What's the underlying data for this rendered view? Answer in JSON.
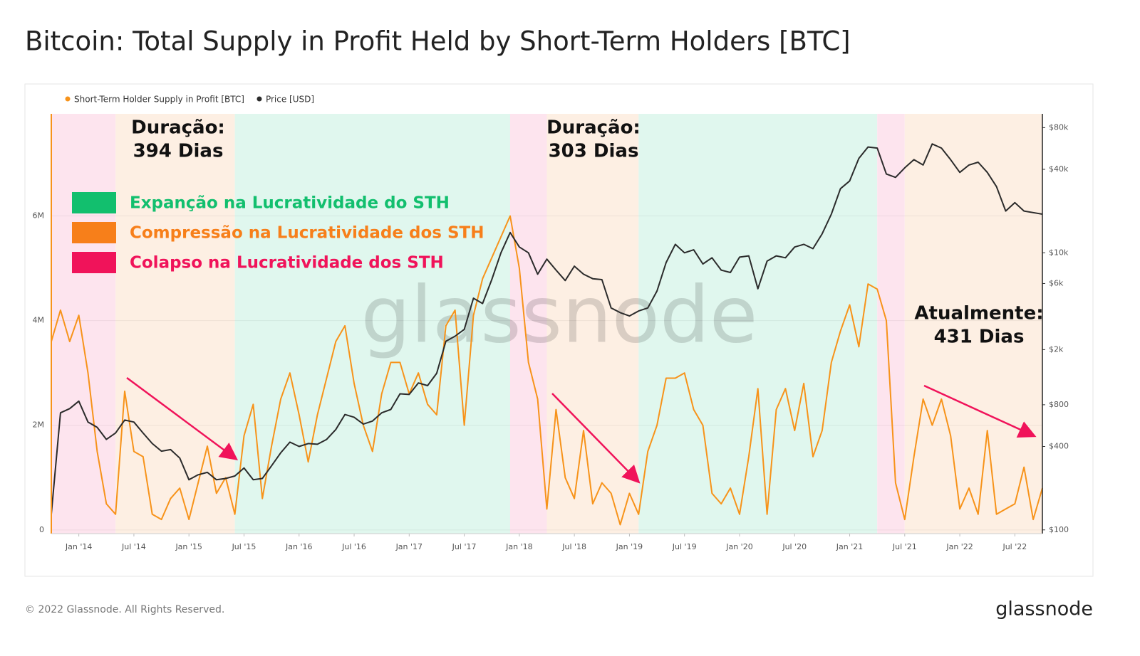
{
  "title": "Bitcoin: Total Supply in Profit Held by Short-Term Holders [BTC]",
  "footer": "© 2022 Glassnode. All Rights Reserved.",
  "brand": "glassnode",
  "chart_data": {
    "type": "line",
    "watermark": "glassnode",
    "x": [
      "2013-10",
      "2013-11",
      "2013-12",
      "2014-01",
      "2014-02",
      "2014-03",
      "2014-04",
      "2014-05",
      "2014-06",
      "2014-07",
      "2014-08",
      "2014-09",
      "2014-10",
      "2014-11",
      "2014-12",
      "2015-01",
      "2015-02",
      "2015-03",
      "2015-04",
      "2015-05",
      "2015-06",
      "2015-07",
      "2015-08",
      "2015-09",
      "2015-10",
      "2015-11",
      "2015-12",
      "2016-01",
      "2016-02",
      "2016-03",
      "2016-04",
      "2016-05",
      "2016-06",
      "2016-07",
      "2016-08",
      "2016-09",
      "2016-10",
      "2016-11",
      "2016-12",
      "2017-01",
      "2017-02",
      "2017-03",
      "2017-04",
      "2017-05",
      "2017-06",
      "2017-07",
      "2017-08",
      "2017-09",
      "2017-10",
      "2017-11",
      "2017-12",
      "2018-01",
      "2018-02",
      "2018-03",
      "2018-04",
      "2018-05",
      "2018-06",
      "2018-07",
      "2018-08",
      "2018-09",
      "2018-10",
      "2018-11",
      "2018-12",
      "2019-01",
      "2019-02",
      "2019-03",
      "2019-04",
      "2019-05",
      "2019-06",
      "2019-07",
      "2019-08",
      "2019-09",
      "2019-10",
      "2019-11",
      "2019-12",
      "2020-01",
      "2020-02",
      "2020-03",
      "2020-04",
      "2020-05",
      "2020-06",
      "2020-07",
      "2020-08",
      "2020-09",
      "2020-10",
      "2020-11",
      "2020-12",
      "2021-01",
      "2021-02",
      "2021-03",
      "2021-04",
      "2021-05",
      "2021-06",
      "2021-07",
      "2021-08",
      "2021-09",
      "2021-10",
      "2021-11",
      "2021-12",
      "2022-01",
      "2022-02",
      "2022-03",
      "2022-04",
      "2022-05",
      "2022-06",
      "2022-07",
      "2022-08",
      "2022-09",
      "2022-10"
    ],
    "series": [
      {
        "name": "Short-Term Holder Supply in Profit [BTC]",
        "color": "#f7931a",
        "axis": "y",
        "values": [
          3600000,
          4200000,
          3600000,
          4100000,
          3000000,
          1500000,
          500000,
          300000,
          2650000,
          1500000,
          1400000,
          300000,
          200000,
          600000,
          800000,
          200000,
          900000,
          1600000,
          700000,
          1000000,
          300000,
          1800000,
          2400000,
          600000,
          1600000,
          2500000,
          3000000,
          2200000,
          1300000,
          2200000,
          2900000,
          3600000,
          3900000,
          2800000,
          2000000,
          1500000,
          2600000,
          3200000,
          3200000,
          2600000,
          3000000,
          2400000,
          2200000,
          3900000,
          4200000,
          2000000,
          4100000,
          4800000,
          5200000,
          5600000,
          6000000,
          5000000,
          3200000,
          2500000,
          400000,
          2300000,
          1000000,
          600000,
          1900000,
          500000,
          900000,
          700000,
          100000,
          700000,
          300000,
          1500000,
          2000000,
          2900000,
          2900000,
          3000000,
          2300000,
          2000000,
          700000,
          500000,
          800000,
          300000,
          1400000,
          2700000,
          300000,
          2300000,
          2700000,
          1900000,
          2800000,
          1400000,
          1900000,
          3200000,
          3800000,
          4300000,
          3500000,
          4700000,
          4600000,
          4000000,
          900000,
          200000,
          1400000,
          2500000,
          2000000,
          2500000,
          1800000,
          400000,
          800000,
          300000,
          1900000,
          300000,
          400000,
          500000,
          1200000,
          200000,
          800000
        ]
      },
      {
        "name": "Price [USD]",
        "color": "#2b2b2b",
        "axis": "y2",
        "values": [
          130,
          700,
          750,
          850,
          600,
          550,
          450,
          500,
          620,
          600,
          500,
          420,
          370,
          380,
          330,
          230,
          250,
          260,
          230,
          235,
          245,
          280,
          230,
          235,
          290,
          360,
          430,
          400,
          420,
          415,
          450,
          530,
          680,
          650,
          580,
          610,
          700,
          740,
          960,
          950,
          1150,
          1100,
          1350,
          2300,
          2500,
          2800,
          4700,
          4300,
          6400,
          10000,
          14000,
          11000,
          10000,
          7000,
          9000,
          7500,
          6300,
          8000,
          7000,
          6500,
          6400,
          4000,
          3700,
          3500,
          3800,
          4000,
          5300,
          8500,
          11500,
          10000,
          10500,
          8300,
          9200,
          7500,
          7200,
          9300,
          9500,
          5500,
          8700,
          9500,
          9200,
          11000,
          11500,
          10700,
          13700,
          19000,
          29000,
          33000,
          48000,
          58000,
          57000,
          37000,
          35000,
          41000,
          47000,
          43000,
          61000,
          57000,
          47000,
          38000,
          43000,
          45000,
          38000,
          30000,
          20000,
          23000,
          20000,
          19500,
          19000
        ]
      }
    ],
    "xlim": [
      "2013-10",
      "2022-10"
    ],
    "xticks": [
      {
        "value": "2014-01",
        "label": "Jan '14"
      },
      {
        "value": "2014-07",
        "label": "Jul '14"
      },
      {
        "value": "2015-01",
        "label": "Jan '15"
      },
      {
        "value": "2015-07",
        "label": "Jul '15"
      },
      {
        "value": "2016-01",
        "label": "Jan '16"
      },
      {
        "value": "2016-07",
        "label": "Jul '16"
      },
      {
        "value": "2017-01",
        "label": "Jan '17"
      },
      {
        "value": "2017-07",
        "label": "Jul '17"
      },
      {
        "value": "2018-01",
        "label": "Jan '18"
      },
      {
        "value": "2018-07",
        "label": "Jul '18"
      },
      {
        "value": "2019-01",
        "label": "Jan '19"
      },
      {
        "value": "2019-07",
        "label": "Jul '19"
      },
      {
        "value": "2020-01",
        "label": "Jan '20"
      },
      {
        "value": "2020-07",
        "label": "Jul '20"
      },
      {
        "value": "2021-01",
        "label": "Jan '21"
      },
      {
        "value": "2021-07",
        "label": "Jul '21"
      },
      {
        "value": "2022-01",
        "label": "Jan '22"
      },
      {
        "value": "2022-07",
        "label": "Jul '22"
      }
    ],
    "ylim": [
      -70000,
      7950000
    ],
    "yticks": [
      0,
      {
        "value": 2000000,
        "label": "2M"
      },
      {
        "value": 4000000,
        "label": "4M"
      },
      {
        "value": 6000000,
        "label": "6M"
      }
    ],
    "y2lim": [
      94,
      100600
    ],
    "y2log": true,
    "y2ticks": [
      {
        "value": 100,
        "label": "$100"
      },
      {
        "value": 400,
        "label": "$400"
      },
      {
        "value": 800,
        "label": "$800"
      },
      {
        "value": 2000,
        "label": "$2k"
      },
      {
        "value": 6000,
        "label": "$6k"
      },
      {
        "value": 10000,
        "label": "$10k"
      },
      {
        "value": 40000,
        "label": "$40k"
      },
      {
        "value": 80000,
        "label": "$80k"
      }
    ],
    "grid": true,
    "phases": [
      {
        "name": "Expanção na Lucratividade do STH",
        "color": "#12bf6e"
      },
      {
        "name": "Compressão na Lucratividade dos STH",
        "color": "#f77f1a"
      },
      {
        "name": "Colapso na Lucratividade dos STH",
        "color": "#f0135a"
      }
    ],
    "regions": [
      {
        "start": "2013-10",
        "end": "2014-05",
        "color": "#fde4ee"
      },
      {
        "start": "2014-05",
        "end": "2015-06",
        "color": "#fdefe3"
      },
      {
        "start": "2015-06",
        "end": "2017-12",
        "color": "#e0f7ee"
      },
      {
        "start": "2017-12",
        "end": "2018-04",
        "color": "#fde4ee"
      },
      {
        "start": "2018-04",
        "end": "2019-02",
        "color": "#fdefe3"
      },
      {
        "start": "2019-02",
        "end": "2021-04",
        "color": "#e0f7ee"
      },
      {
        "start": "2021-04",
        "end": "2021-07",
        "color": "#fde4ee"
      },
      {
        "start": "2021-07",
        "end": "2022-10",
        "color": "#fdefe3"
      }
    ],
    "annotations": [
      [
        "Duração:",
        "394 Dias"
      ],
      [
        "Duração:",
        "303 Dias"
      ],
      [
        "Atualmente:",
        "431 Dias"
      ]
    ]
  }
}
